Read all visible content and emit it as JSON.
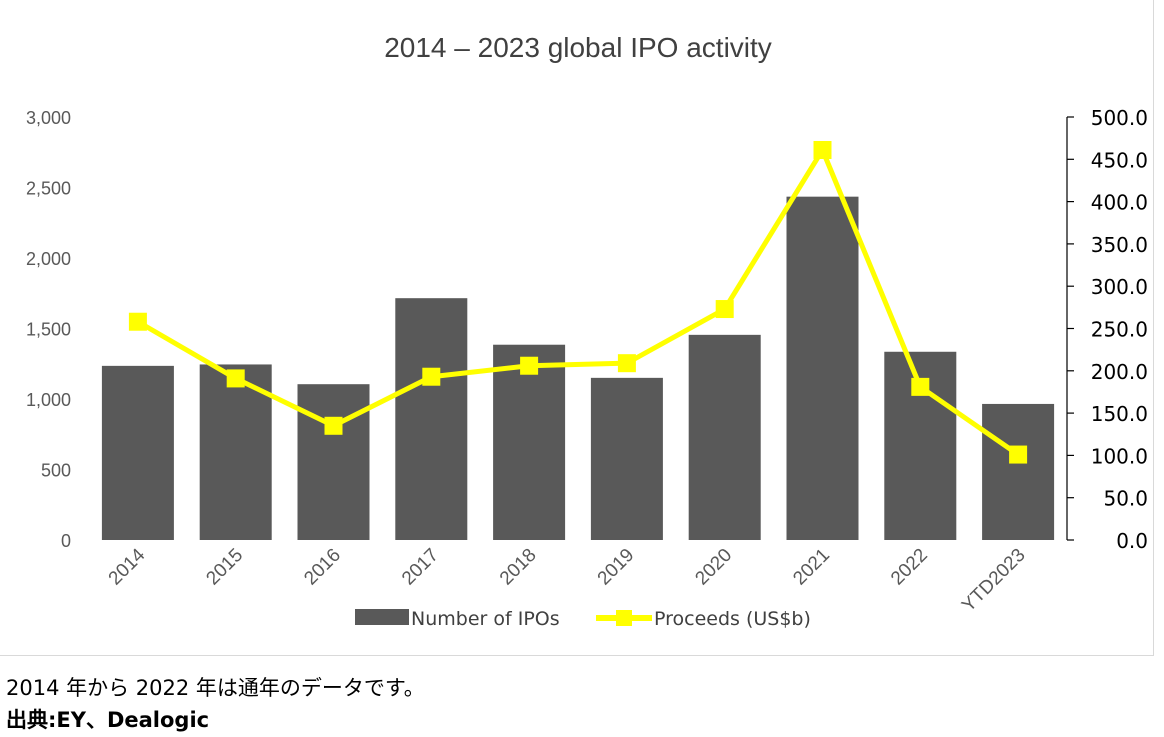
{
  "chart_data": {
    "type": "bar+line",
    "title": "2014 – 2023 global IPO activity",
    "categories": [
      "2014",
      "2015",
      "2016",
      "2017",
      "2018",
      "2019",
      "2020",
      "2021",
      "2022",
      "YTD2023"
    ],
    "series": [
      {
        "name": "Number of IPOs",
        "type": "bar",
        "axis": "left",
        "color": "#595959",
        "values": [
          1235,
          1245,
          1105,
          1715,
          1385,
          1150,
          1455,
          2435,
          1335,
          965
        ]
      },
      {
        "name": "Proceeds (US$b)",
        "type": "line",
        "axis": "right",
        "color": "#ffff00",
        "values": [
          258,
          191,
          135,
          193,
          206,
          209,
          273,
          461,
          181,
          101
        ]
      }
    ],
    "y_left": {
      "min": 0,
      "max": 3000,
      "ticks": [
        "0",
        "500",
        "1,000",
        "1,500",
        "2,000",
        "2,500",
        "3,000"
      ]
    },
    "y_right": {
      "min": 0,
      "max": 500,
      "ticks": [
        "0.0",
        "50.0",
        "100.0",
        "150.0",
        "200.0",
        "250.0",
        "300.0",
        "350.0",
        "400.0",
        "450.0",
        "500.0"
      ]
    },
    "legend_position": "bottom"
  },
  "notes": {
    "line1": "2014 年から 2022 年は通年のデータです。",
    "line2": "出典:EY、Dealogic"
  }
}
